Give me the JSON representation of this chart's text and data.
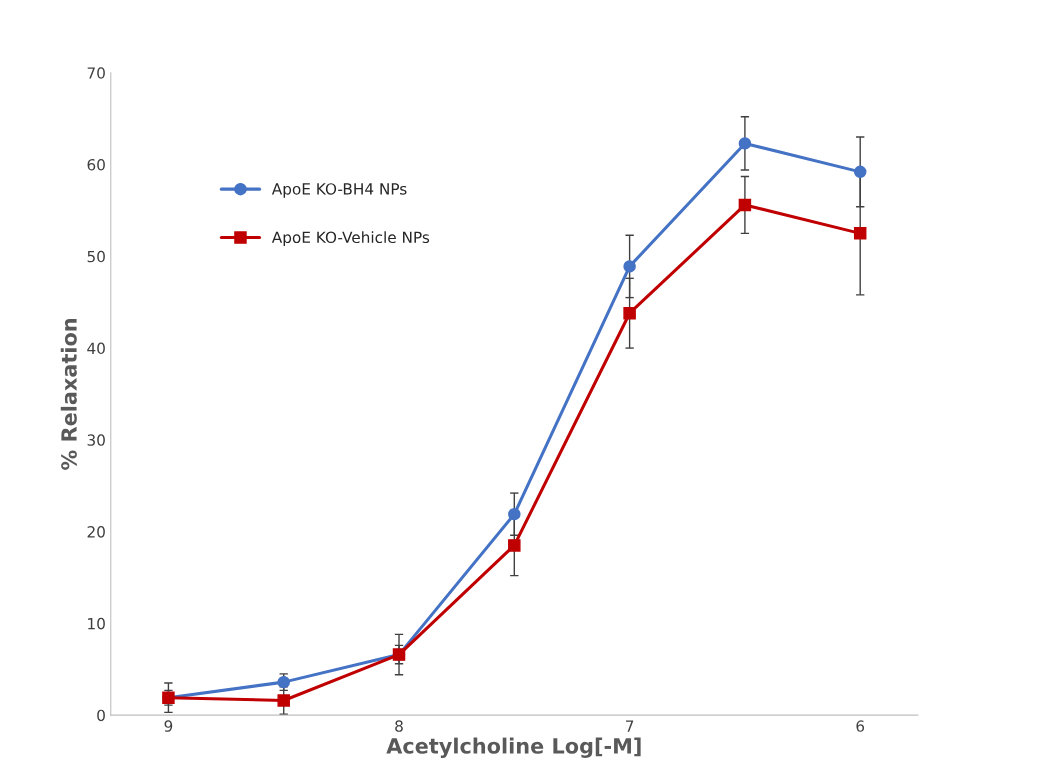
{
  "chart_data": {
    "type": "line",
    "xlabel": "Acetylcholine Log[-M]",
    "ylabel": "% Relaxation",
    "categories": [
      "9",
      null,
      "8",
      null,
      "7",
      null,
      "6"
    ],
    "series": [
      {
        "name": "ApoE KO-BH4 NPs",
        "color": "#4472c4",
        "marker": "circle",
        "values": [
          1.9,
          3.6,
          6.6,
          21.9,
          48.9,
          62.3,
          59.2
        ],
        "errors": [
          0.8,
          0.9,
          2.2,
          2.3,
          3.4,
          2.9,
          3.8
        ]
      },
      {
        "name": "ApoE KO-Vehicle NPs",
        "color": "#c00000",
        "marker": "square",
        "values": [
          1.9,
          1.6,
          6.6,
          18.5,
          43.8,
          55.6,
          52.5
        ],
        "errors": [
          1.6,
          1.5,
          1.0,
          3.3,
          3.8,
          3.1,
          6.7
        ]
      }
    ],
    "ylim": [
      0,
      70
    ],
    "yticks": [
      0,
      10,
      20,
      30,
      40,
      50,
      60,
      70
    ],
    "grid": false,
    "legend": "top left",
    "line_style": "solid"
  }
}
